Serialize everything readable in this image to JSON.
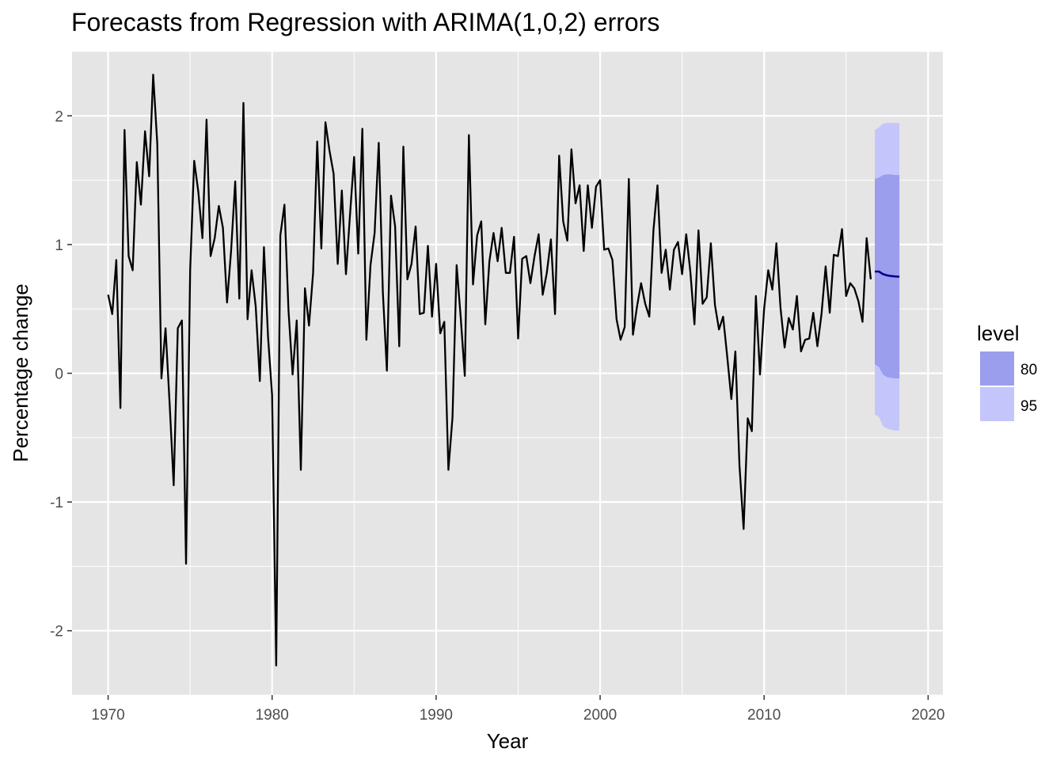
{
  "chart_data": {
    "type": "line",
    "title": "Forecasts from Regression with ARIMA(1,0,2) errors",
    "xlabel": "Year",
    "ylabel": "Percentage change",
    "xlim": [
      1967.8,
      2020.9
    ],
    "ylim": [
      -2.5,
      2.5
    ],
    "x_ticks": [
      1970,
      1980,
      1990,
      2000,
      2010,
      2020
    ],
    "y_ticks": [
      -2,
      -1,
      0,
      1,
      2
    ],
    "grid": true,
    "legend": {
      "title": "level",
      "position": "right",
      "entries": [
        {
          "label": "80",
          "color": "#9b9ded"
        },
        {
          "label": "95",
          "color": "#c4c6fb"
        }
      ]
    },
    "colors": {
      "panel": "#e5e5e5",
      "grid_major": "#ffffff",
      "series": "#000000",
      "forecast": "#00008b",
      "band80": "#9b9ded",
      "band95": "#c4c6fb"
    },
    "series": [
      {
        "x_start": 1970.0,
        "step": 0.25,
        "values": [
          0.61,
          0.46,
          0.88,
          -0.27,
          1.89,
          0.91,
          0.8,
          1.64,
          1.31,
          1.88,
          1.53,
          2.32,
          1.78,
          -0.04,
          0.35,
          -0.24,
          -0.87,
          0.35,
          0.41,
          -1.48,
          0.8,
          1.65,
          1.41,
          1.05,
          1.97,
          0.91,
          1.05,
          1.3,
          1.13,
          0.55,
          0.95,
          1.49,
          0.58,
          2.1,
          0.42,
          0.8,
          0.52,
          -0.06,
          0.98,
          0.28,
          -0.17,
          -2.27,
          1.07,
          1.31,
          0.49,
          -0.01,
          0.41,
          -0.75,
          0.66,
          0.37,
          0.78,
          1.8,
          0.97,
          1.95,
          1.73,
          1.55,
          0.85,
          1.42,
          0.77,
          1.23,
          1.68,
          0.93,
          1.9,
          0.26,
          0.84,
          1.09,
          1.79,
          0.63,
          0.02,
          1.38,
          1.14,
          0.21,
          1.76,
          0.73,
          0.85,
          1.14,
          0.46,
          0.47,
          0.99,
          0.44,
          0.85,
          0.31,
          0.4,
          -0.75,
          -0.34,
          0.84,
          0.43,
          -0.02,
          1.85,
          0.69,
          1.07,
          1.18,
          0.38,
          0.87,
          1.09,
          0.87,
          1.13,
          0.78,
          0.78,
          1.06,
          0.27,
          0.89,
          0.91,
          0.7,
          0.91,
          1.08,
          0.61,
          0.78,
          1.04,
          0.46,
          1.69,
          1.18,
          1.03,
          1.74,
          1.32,
          1.46,
          0.95,
          1.46,
          1.13,
          1.45,
          1.5,
          0.96,
          0.97,
          0.88,
          0.42,
          0.26,
          0.36,
          1.51,
          0.3,
          0.52,
          0.7,
          0.54,
          0.44,
          1.11,
          1.46,
          0.78,
          0.96,
          0.65,
          0.96,
          1.02,
          0.77,
          1.08,
          0.79,
          0.38,
          1.11,
          0.54,
          0.59,
          1.01,
          0.53,
          0.34,
          0.44,
          0.13,
          -0.2,
          0.17,
          -0.72,
          -1.21,
          -0.35,
          -0.45,
          0.6,
          -0.01,
          0.5,
          0.8,
          0.65,
          1.01,
          0.51,
          0.2,
          0.43,
          0.34,
          0.6,
          0.17,
          0.26,
          0.27,
          0.47,
          0.21,
          0.46,
          0.83,
          0.47,
          0.92,
          0.91,
          1.12,
          0.6,
          0.7,
          0.66,
          0.56,
          0.4,
          1.05,
          0.73
        ]
      }
    ],
    "forecast": {
      "x_start": 2016.75,
      "step": 0.25,
      "mean": [
        0.79,
        0.79,
        0.77,
        0.76,
        0.755,
        0.752,
        0.75
      ],
      "lo80": [
        0.07,
        0.05,
        -0.01,
        -0.03,
        -0.035,
        -0.04,
        -0.04
      ],
      "hi80": [
        1.51,
        1.52,
        1.54,
        1.545,
        1.545,
        1.54,
        1.54
      ],
      "lo95": [
        -0.32,
        -0.34,
        -0.41,
        -0.43,
        -0.44,
        -0.445,
        -0.445
      ],
      "hi95": [
        1.89,
        1.91,
        1.94,
        1.945,
        1.945,
        1.945,
        1.945
      ]
    }
  }
}
